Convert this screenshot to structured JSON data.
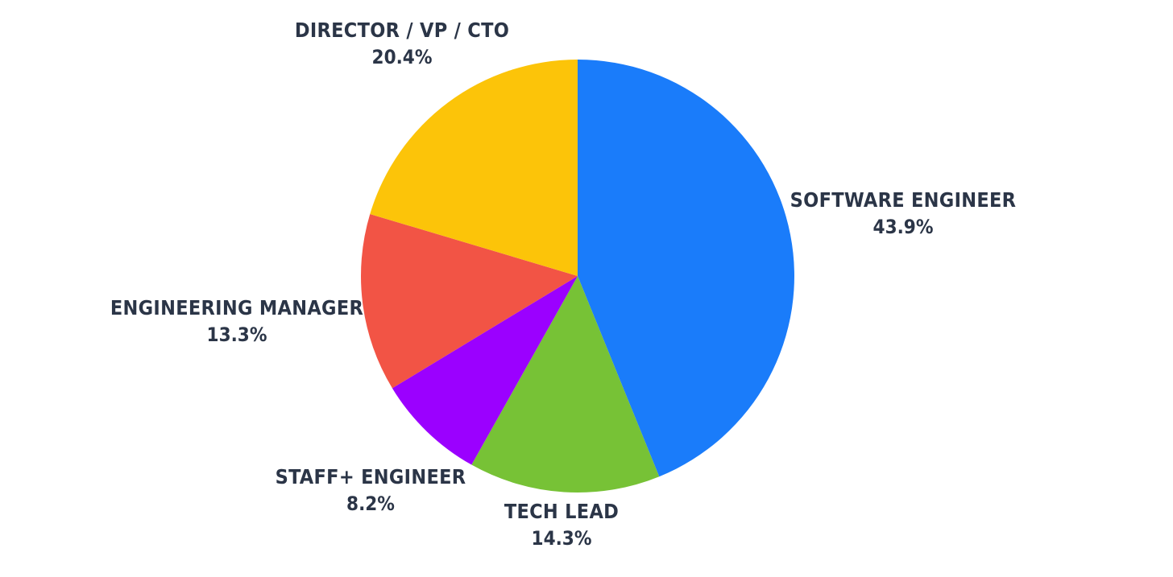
{
  "chart_data": {
    "type": "pie",
    "title": "",
    "start_angle_deg": 0,
    "direction": "clockwise",
    "slices": [
      {
        "label": "SOFTWARE ENGINEER",
        "value": 43.9,
        "value_text": "43.9%",
        "color": "#1a7cfa"
      },
      {
        "label": "TECH LEAD",
        "value": 14.3,
        "value_text": "14.3%",
        "color": "#77c236"
      },
      {
        "label": "STAFF+ ENGINEER",
        "value": 8.2,
        "value_text": "8.2%",
        "color": "#9b00ff"
      },
      {
        "label": "ENGINEERING MANAGER",
        "value": 13.3,
        "value_text": "13.3%",
        "color": "#f25445"
      },
      {
        "label": "DIRECTOR / VP / CTO",
        "value": 20.4,
        "value_text": "20.4%",
        "color": "#fcc409"
      }
    ]
  }
}
